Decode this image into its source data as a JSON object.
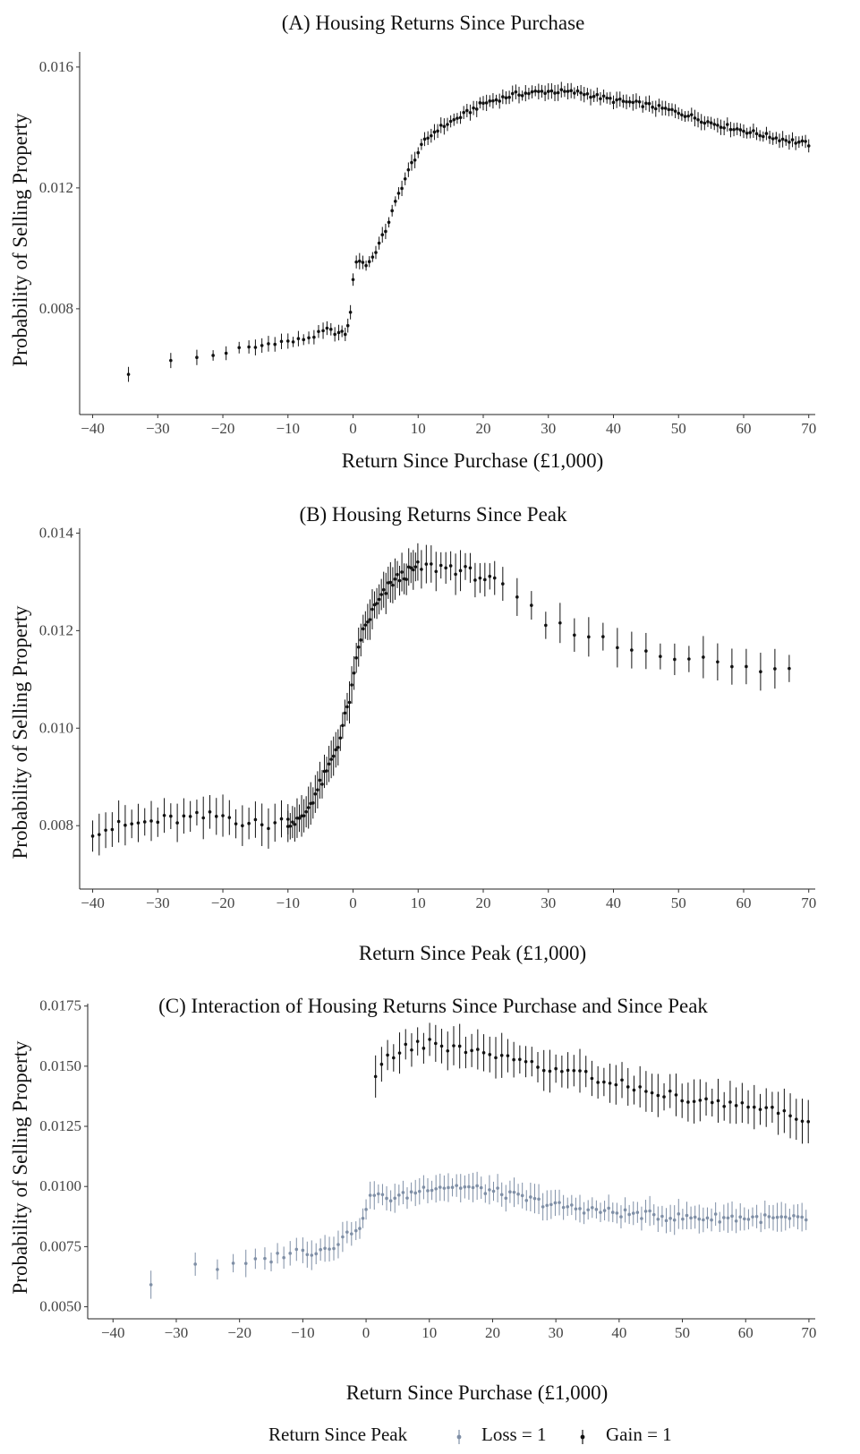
{
  "chart_data": [
    {
      "type": "scatter",
      "title": "(A)  Housing Returns Since Purchase",
      "xlabel": "Return Since Purchase (£1,000)",
      "ylabel": "Probability of Selling Property",
      "xlim": [
        -42,
        71
      ],
      "ylim": [
        0.0045,
        0.0165
      ],
      "xticks": [
        -40,
        -30,
        -20,
        -10,
        0,
        10,
        20,
        30,
        40,
        50,
        60,
        70
      ],
      "xtick_labels": [
        "−40",
        "−30",
        "−20",
        "−10",
        "0",
        "10",
        "20",
        "30",
        "40",
        "50",
        "60",
        "70"
      ],
      "yticks": [
        0.008,
        0.012,
        0.016
      ],
      "ytick_labels": [
        "0.008",
        "0.012",
        "0.016"
      ],
      "grid": false,
      "series": [
        {
          "color": "#111111",
          "knots": [
            [
              -34.5,
              0.00588
            ],
            [
              -28,
              0.00625
            ],
            [
              -24,
              0.00638
            ],
            [
              -21,
              0.00648
            ],
            [
              -18,
              0.00665
            ],
            [
              -15,
              0.00672
            ],
            [
              -12,
              0.0069
            ],
            [
              -9,
              0.00692
            ],
            [
              -6,
              0.0071
            ],
            [
              -4,
              0.0073
            ],
            [
              -2,
              0.00718
            ],
            [
              -1,
              0.0072
            ],
            [
              -0.5,
              0.0077
            ],
            [
              0,
              0.0089
            ],
            [
              0.3,
              0.0096
            ],
            [
              1,
              0.0096
            ],
            [
              2,
              0.00945
            ],
            [
              3,
              0.0097
            ],
            [
              5,
              0.0106
            ],
            [
              7,
              0.0118
            ],
            [
              9,
              0.0128
            ],
            [
              11,
              0.01355
            ],
            [
              13,
              0.01395
            ],
            [
              16,
              0.0143
            ],
            [
              20,
              0.0148
            ],
            [
              25,
              0.0151
            ],
            [
              30,
              0.0152
            ],
            [
              35,
              0.01515
            ],
            [
              40,
              0.0149
            ],
            [
              45,
              0.01475
            ],
            [
              50,
              0.0145
            ],
            [
              55,
              0.01415
            ],
            [
              60,
              0.0139
            ],
            [
              65,
              0.01365
            ],
            [
              70,
              0.01345
            ]
          ],
          "xs": {
            "from": -34.5,
            "to": 70,
            "step_pos": 0.5,
            "sparse_neg": [
              -34.5,
              -28,
              -24,
              -21.5,
              -19.5,
              -17.5,
              -16,
              -15,
              -14,
              -13,
              -12,
              -11,
              -10,
              -9.2,
              -8.4,
              -7.6,
              -6.8,
              -6,
              -5.3,
              -4.6,
              -4,
              -3.4,
              -2.8,
              -2.2,
              -1.7,
              -1.2,
              -0.8,
              -0.4
            ]
          },
          "err_half": 0.00022,
          "jitter": 8e-05
        }
      ]
    },
    {
      "type": "scatter",
      "title": "(B)  Housing Returns Since Peak",
      "xlabel": "Return Since Peak (£1,000)",
      "ylabel": "Probability of Selling Property",
      "xlim": [
        -42,
        71
      ],
      "ylim": [
        0.0067,
        0.0141
      ],
      "xticks": [
        -40,
        -30,
        -20,
        -10,
        0,
        10,
        20,
        30,
        40,
        50,
        60,
        70
      ],
      "xtick_labels": [
        "−40",
        "−30",
        "−20",
        "−10",
        "0",
        "10",
        "20",
        "30",
        "40",
        "50",
        "60",
        "70"
      ],
      "yticks": [
        0.008,
        0.01,
        0.012,
        0.014
      ],
      "ytick_labels": [
        "0.008",
        "0.010",
        "0.012",
        "0.014"
      ],
      "grid": false,
      "series": [
        {
          "color": "#111111",
          "knots": [
            [
              -40,
              0.0079
            ],
            [
              -30,
              0.0081
            ],
            [
              -20,
              0.0082
            ],
            [
              -14,
              0.008
            ],
            [
              -10,
              0.0081
            ],
            [
              -8,
              0.0081
            ],
            [
              -6,
              0.0086
            ],
            [
              -4,
              0.0091
            ],
            [
              -2,
              0.0098
            ],
            [
              0,
              0.0109
            ],
            [
              1,
              0.0118
            ],
            [
              3,
              0.0124
            ],
            [
              6,
              0.013
            ],
            [
              10,
              0.0133
            ],
            [
              15,
              0.0133
            ],
            [
              20,
              0.0131
            ],
            [
              25,
              0.0127
            ],
            [
              30,
              0.0121
            ],
            [
              35,
              0.012
            ],
            [
              40,
              0.0117
            ],
            [
              50,
              0.0115
            ],
            [
              60,
              0.0112
            ],
            [
              70,
              0.0112
            ]
          ],
          "xs_list": "B",
          "err_half": 0.00035,
          "jitter": 0.00012
        }
      ]
    },
    {
      "type": "scatter",
      "title": "(C)  Interaction of Housing Returns Since Purchase and Since Peak",
      "xlabel": "Return Since Purchase (£1,000)",
      "ylabel": "Probability of Selling Property",
      "xlim": [
        -44,
        71
      ],
      "ylim": [
        0.0045,
        0.0176
      ],
      "xticks": [
        -40,
        -30,
        -20,
        -10,
        0,
        10,
        20,
        30,
        40,
        50,
        60,
        70
      ],
      "xtick_labels": [
        "−40",
        "−30",
        "−20",
        "−10",
        "0",
        "10",
        "20",
        "30",
        "40",
        "50",
        "60",
        "70"
      ],
      "yticks": [
        0.005,
        0.0075,
        0.01,
        0.0125,
        0.015,
        0.0175
      ],
      "ytick_labels": [
        "0.0050",
        "0.0075",
        "0.0100",
        "0.0125",
        "0.0150",
        "0.0175"
      ],
      "grid": false,
      "series": [
        {
          "name": "Loss = 1",
          "color": "#7f8fa6",
          "knots": [
            [
              -34,
              0.006
            ],
            [
              -27,
              0.0068
            ],
            [
              -23,
              0.0066
            ],
            [
              -20,
              0.0067
            ],
            [
              -15,
              0.007
            ],
            [
              -12,
              0.0073
            ],
            [
              -8,
              0.0073
            ],
            [
              -5,
              0.0076
            ],
            [
              -2,
              0.0082
            ],
            [
              -0.5,
              0.0085
            ],
            [
              0,
              0.0092
            ],
            [
              1,
              0.0097
            ],
            [
              3,
              0.0095
            ],
            [
              6,
              0.0096
            ],
            [
              10,
              0.01
            ],
            [
              15,
              0.01
            ],
            [
              20,
              0.0098
            ],
            [
              25,
              0.0095
            ],
            [
              30,
              0.0092
            ],
            [
              40,
              0.0089
            ],
            [
              50,
              0.0087
            ],
            [
              60,
              0.0087
            ],
            [
              70,
              0.0086
            ]
          ],
          "xs_list": "C1",
          "err_half": 0.0005,
          "jitter": 0.00018
        },
        {
          "name": "Gain = 1",
          "color": "#111111",
          "knots": [
            [
              1.5,
              0.0145
            ],
            [
              3,
              0.0153
            ],
            [
              6,
              0.0157
            ],
            [
              10,
              0.016
            ],
            [
              15,
              0.0157
            ],
            [
              20,
              0.0155
            ],
            [
              25,
              0.0151
            ],
            [
              30,
              0.0149
            ],
            [
              35,
              0.0146
            ],
            [
              40,
              0.0143
            ],
            [
              45,
              0.0139
            ],
            [
              50,
              0.0137
            ],
            [
              55,
              0.0135
            ],
            [
              60,
              0.0134
            ],
            [
              65,
              0.0131
            ],
            [
              70,
              0.0127
            ]
          ],
          "xs_list": "C2",
          "err_half": 0.00075,
          "jitter": 0.0002
        }
      ]
    }
  ],
  "legend": {
    "title": "Return Since Peak",
    "items": [
      {
        "label": "Loss = 1",
        "color": "#7f8fa6"
      },
      {
        "label": "Gain = 1",
        "color": "#111111"
      }
    ]
  }
}
